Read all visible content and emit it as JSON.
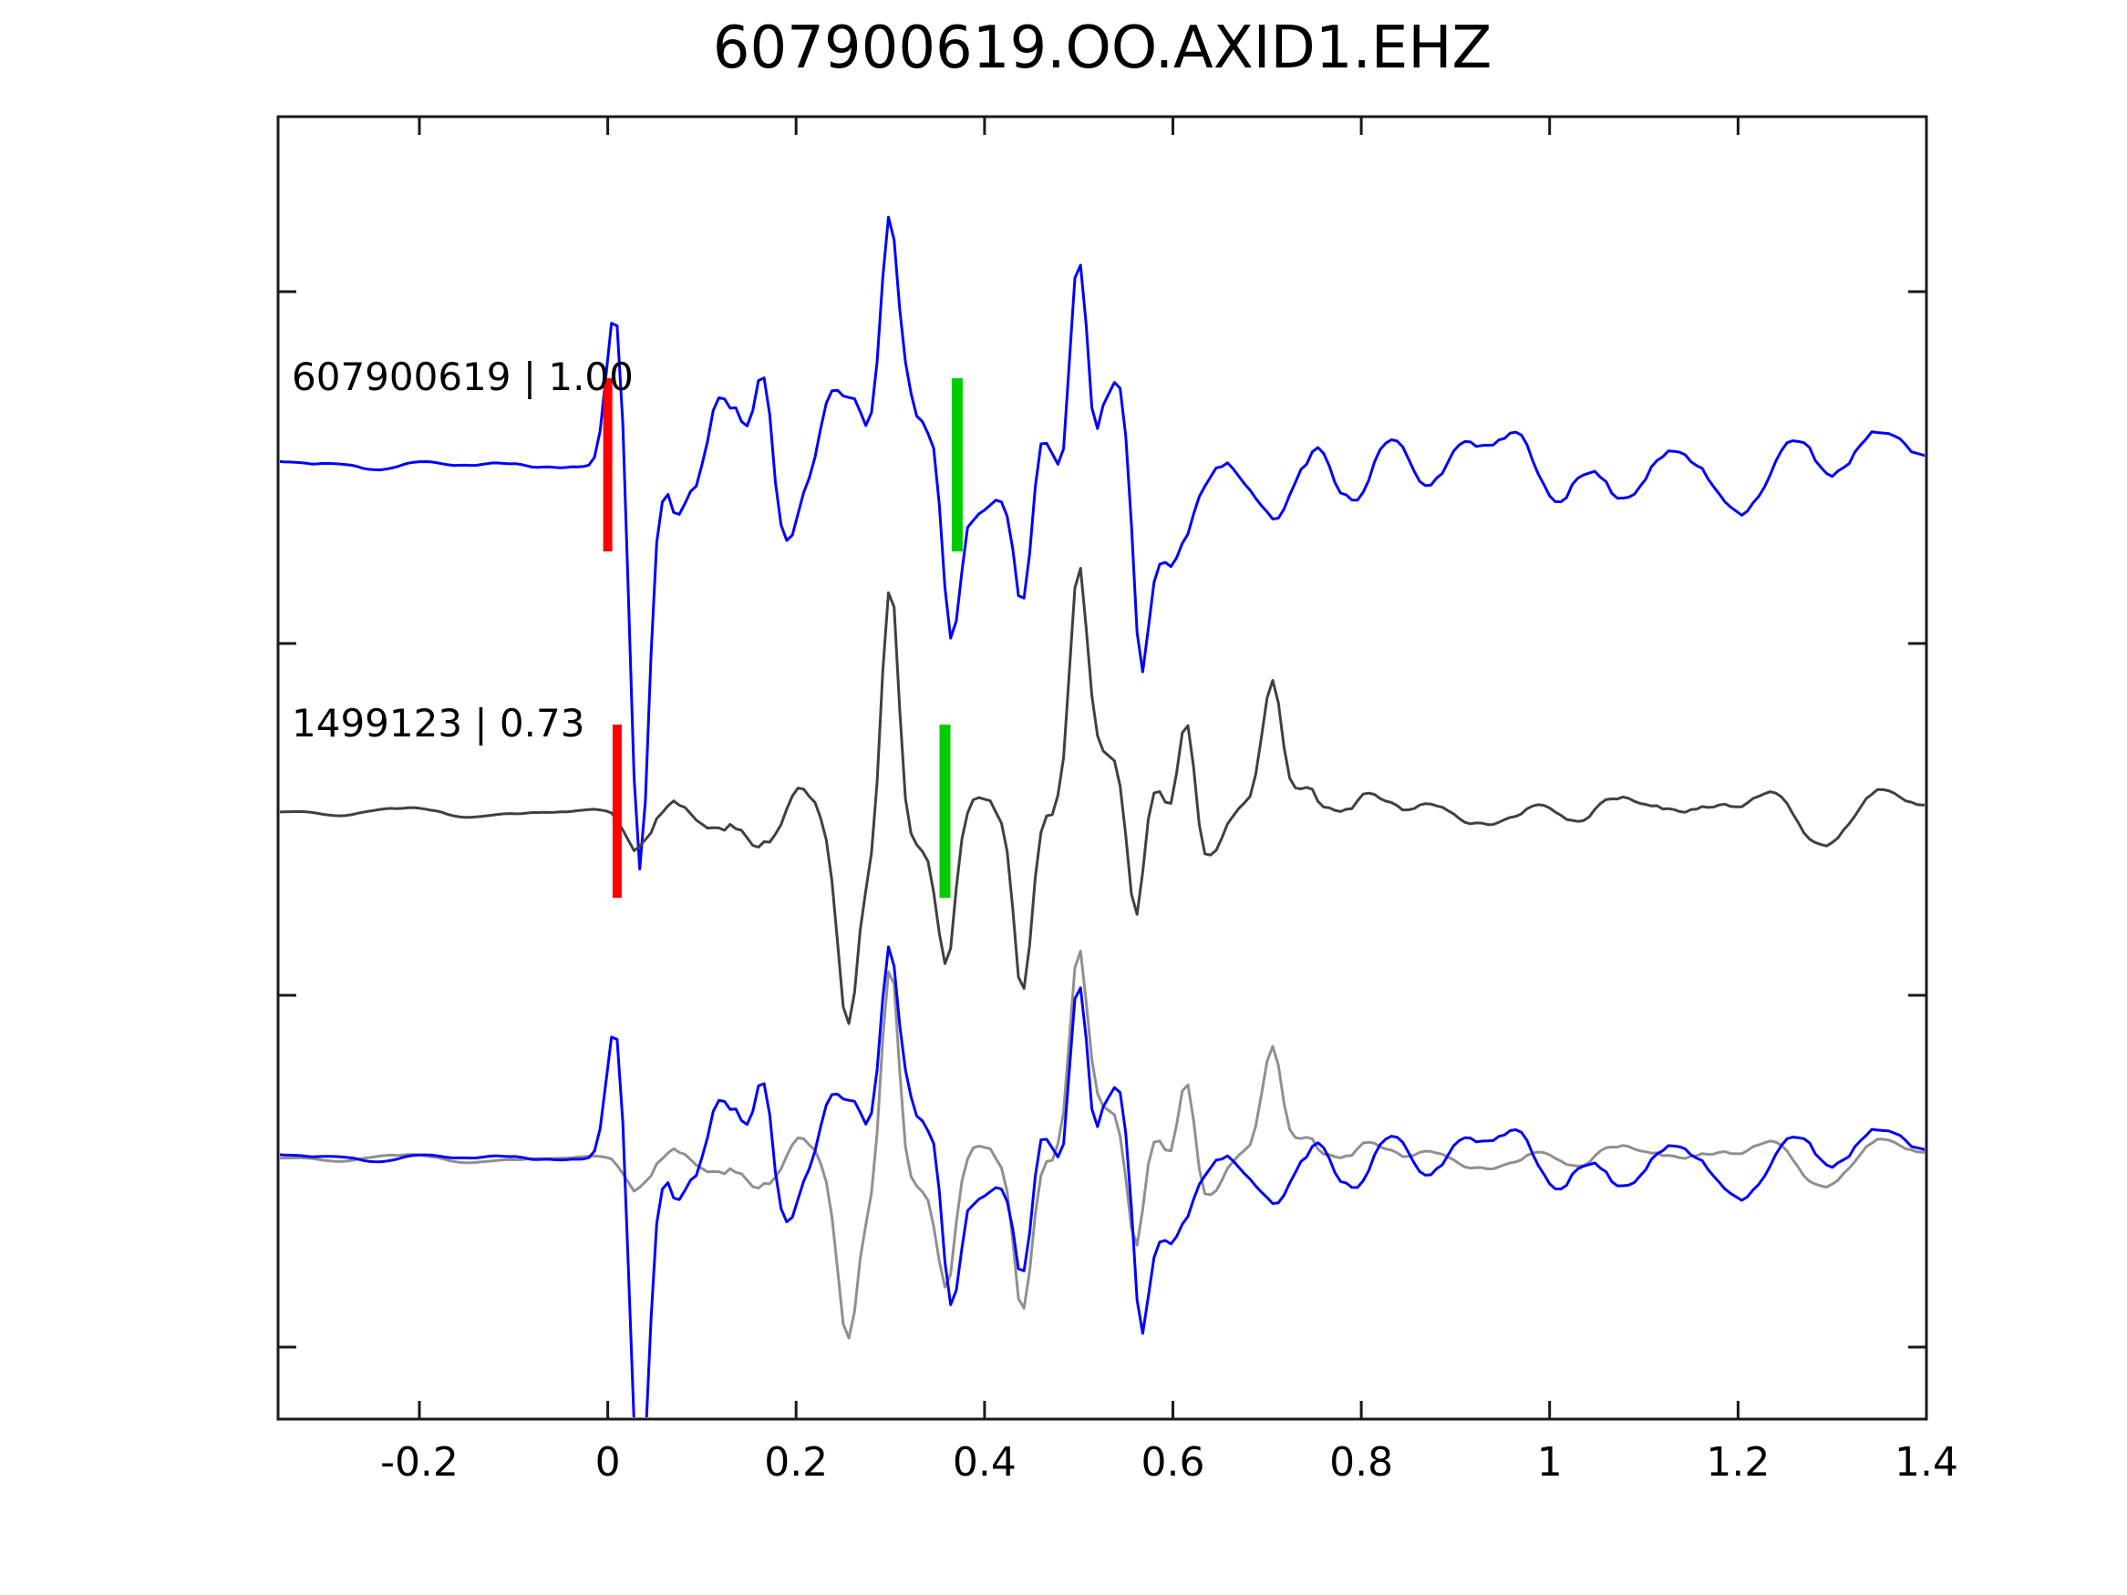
{
  "figure": {
    "title": "607900619.OO.AXID1.EHZ"
  },
  "colors": {
    "template": "#0000ff",
    "detection": "#404040",
    "overlay_detection": "#909090",
    "pick_template": "#ff0000",
    "pick_new": "#00cc00",
    "axis": "#1a1a1a",
    "text": "#000000",
    "background": "#ffffff"
  },
  "chart_data": {
    "type": "line",
    "title": "607900619.OO.AXID1.EHZ",
    "xlabel": "",
    "ylabel": "",
    "grid": false,
    "legend": "none",
    "x_range": [
      -0.35,
      1.4
    ],
    "x_ticks": [
      -0.2,
      0,
      0.2,
      0.4,
      0.6,
      0.8,
      1,
      1.2,
      1.4
    ],
    "x_tick_labels": [
      "-0.2",
      "0",
      "0.2",
      "0.4",
      "0.6",
      "0.8",
      "1",
      "1.2",
      "1.4"
    ],
    "traces": [
      {
        "id": "607900619",
        "correlation": "1.00",
        "label": "607900619 | 1.00",
        "row": 0,
        "color_key": "template",
        "picks": [
          {
            "kind": "template-pick",
            "time": 0.0,
            "color_key": "pick_template"
          },
          {
            "kind": "adjusted-pick",
            "time": 0.371,
            "color_key": "pick_new"
          }
        ],
        "synth": {
          "seed": 11,
          "dt": 0.006,
          "feature_width": 0.013,
          "smooth_window": 5,
          "smooth_passes": 2,
          "envelope": [
            [
              -0.35,
              9
            ],
            [
              -0.015,
              9
            ],
            [
              0.005,
              28
            ],
            [
              0.03,
              140
            ],
            [
              0.08,
              128
            ],
            [
              0.16,
              135
            ],
            [
              0.24,
              125
            ],
            [
              0.32,
              148
            ],
            [
              0.4,
              138
            ],
            [
              0.5,
              150
            ],
            [
              0.58,
              135
            ],
            [
              0.64,
              100
            ],
            [
              0.72,
              82
            ],
            [
              0.8,
              62
            ],
            [
              0.9,
              55
            ],
            [
              1.0,
              56
            ],
            [
              1.1,
              48
            ],
            [
              1.2,
              55
            ],
            [
              1.3,
              62
            ],
            [
              1.4,
              50
            ]
          ],
          "features": [
            [
              0.008,
              175
            ],
            [
              0.034,
              -430
            ],
            [
              0.165,
              160
            ],
            [
              0.3,
              235
            ],
            [
              0.365,
              -175
            ],
            [
              0.44,
              -195
            ],
            [
              0.5,
              285
            ],
            [
              0.565,
              -225
            ]
          ]
        }
      },
      {
        "id": "1499123",
        "correlation": "0.73",
        "label": "1499123 | 0.73",
        "row": 1,
        "color_key": "detection",
        "picks": [
          {
            "kind": "template-pick",
            "time": 0.01,
            "color_key": "pick_template"
          },
          {
            "kind": "adjusted-pick",
            "time": 0.358,
            "color_key": "pick_new"
          }
        ],
        "synth": {
          "seed": 47,
          "dt": 0.006,
          "feature_width": 0.013,
          "smooth_window": 5,
          "smooth_passes": 2,
          "envelope": [
            [
              -0.35,
              7
            ],
            [
              0.0,
              8
            ],
            [
              0.03,
              75
            ],
            [
              0.1,
              92
            ],
            [
              0.2,
              100
            ],
            [
              0.3,
              125
            ],
            [
              0.4,
              108
            ],
            [
              0.5,
              128
            ],
            [
              0.6,
              108
            ],
            [
              0.68,
              95
            ],
            [
              0.78,
              68
            ],
            [
              0.86,
              32
            ],
            [
              0.95,
              27
            ],
            [
              1.05,
              34
            ],
            [
              1.15,
              29
            ],
            [
              1.25,
              40
            ],
            [
              1.35,
              36
            ],
            [
              1.4,
              32
            ]
          ],
          "features": [
            [
              0.3,
              290
            ],
            [
              0.255,
              -155
            ],
            [
              0.36,
              -165
            ],
            [
              0.44,
              -175
            ],
            [
              0.5,
              255
            ],
            [
              0.56,
              -165
            ],
            [
              0.615,
              155
            ],
            [
              0.705,
              135
            ]
          ]
        }
      },
      {
        "id": "overlay",
        "label": "",
        "row": 2,
        "picks": [],
        "overlay_of": [
          {
            "trace": 1,
            "color_key": "overlay_detection",
            "scale": 0.85
          },
          {
            "trace": 0,
            "color_key": "template",
            "scale": 0.85
          }
        ]
      }
    ]
  }
}
